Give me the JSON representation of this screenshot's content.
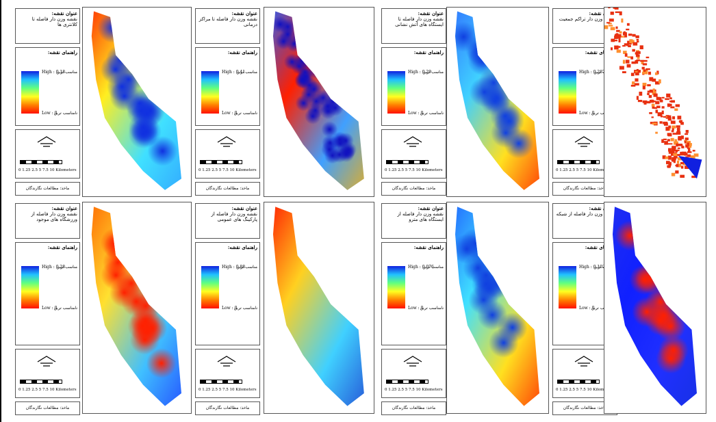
{
  "panels": [
    {
      "title_label": "عنوان نقشه:",
      "map_title": "نقشه وزن دار فاصله تا کلانتری ها",
      "legend_label": "راهنمای نقشه:",
      "high": "High : 0.18",
      "high_text": "مناسب ترین",
      "low": "Low : 0",
      "low_text": "نامناسب ترین",
      "scale": "0 1.25 2.5 5 7.5 10 Kilometers",
      "source": "ماخذ: مطالعات نگارندگان"
    },
    {
      "title_label": "عنوان نقشه:",
      "map_title": "نقشه وزن دار فاصله تا مراکز درمانی",
      "legend_label": "راهنمای نقشه:",
      "high": "High : 0.41",
      "high_text": "مناسب ترین",
      "low": "Low : 0",
      "low_text": "نامناسب ترین",
      "scale": "0 1.25 2.5 5 7.5 10 Kilometers",
      "source": "ماخذ: مطالعات نگارندگان"
    },
    {
      "title_label": "عنوان نقشه:",
      "map_title": "نقشه وزن دار فاصله تا ایستگاه های آتش نشانی",
      "legend_label": "راهنمای نقشه:",
      "high": "High : 0.29",
      "high_text": "مناسب ترین",
      "low": "Low : 0",
      "low_text": "نامناسب ترین",
      "scale": "0 1.25 2.5 5 7.5 10 Kilometers",
      "source": "ماخذ: مطالعات نگارندگان"
    },
    {
      "title_label": "عنوان نقشه:",
      "map_title": "نقشه وزن دار تراکم جمعیت",
      "legend_label": "راهنمای نقشه:",
      "high": "High : 0.287",
      "high_text": "مناسب ترین",
      "low": "Low : 0",
      "low_text": "نامناسب ترین",
      "scale": "0 1.25 2.5 5 7.5 10 Kilometers",
      "source": "ماخذ: مطالعات نگارندگان"
    },
    {
      "title_label": "عنوان نقشه:",
      "map_title": "نقشه وزن دار فاصله از ورزشگاه های موجود",
      "legend_label": "راهنمای نقشه:",
      "high": "High : 0.28",
      "high_text": "مناسب ترین",
      "low": "Low : 0",
      "low_text": "نامناسب ترین",
      "scale": "0 1.25 2.5 5 7.5 10 Kilometers",
      "source": "ماخذ: مطالعات نگارندگان"
    },
    {
      "title_label": "عنوان نقشه:",
      "map_title": "نقشه وزن دار فاصله از پارکینگ های عمومی",
      "legend_label": "راهنمای نقشه:",
      "high": "High : 0.88",
      "high_text": "مناسب ترین",
      "low": "Low : 0",
      "low_text": "نامناسب ترین",
      "scale": "0 1.25 2.5 5 7.5 10 Kilometers",
      "source": "ماخذ: مطالعات نگارندگان"
    },
    {
      "title_label": "عنوان نقشه:",
      "map_title": "نقشه وزن دار فاصله از ایستگاه های مترو",
      "legend_label": "راهنمای نقشه:",
      "high": "High : 0.076",
      "high_text": "مناسب ترین",
      "low": "Low : 0",
      "low_text": "نامناسب ترین",
      "scale": "0 1.25 2.5 5 7.5 10 Kilometers",
      "source": "ماخذ: مطالعات نگارندگان"
    },
    {
      "title_label": "عنوان نقشه:",
      "map_title": "نقشه وزن دار فاصله از شبکه معابر",
      "legend_label": "راهنمای نقشه:",
      "high": "High : 0.102",
      "high_text": "مناسب ترین",
      "low": "Low : 0",
      "low_text": "نامناسب ترین",
      "scale": "0 1.25 2.5 5 7.5 10 Kilometers",
      "source": "ماخذ: مطالعات نگارندگان"
    }
  ]
}
